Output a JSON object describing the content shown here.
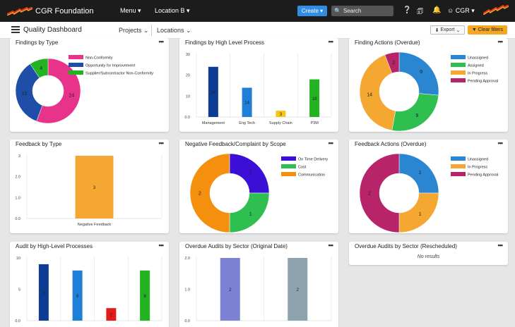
{
  "topbar": {
    "brand": "CGR Foundation",
    "menu": "Menu ▾",
    "location": "Location B ▾",
    "create": "Create ▾",
    "search_placeholder": "Search",
    "user": "CGR ▾"
  },
  "subbar": {
    "title": "Quality Dashboard",
    "projects": "Projects",
    "locations": "Locations",
    "export": "Export",
    "clear_filters": "Clear filters"
  },
  "cards": [
    {
      "title": "Findings by Type",
      "menu": "•••"
    },
    {
      "title": "Findings by High Level Process",
      "menu": "•••"
    },
    {
      "title": "Finding Actions (Overdue)",
      "menu": "•••"
    },
    {
      "title": "Feedback by Type",
      "menu": "•••"
    },
    {
      "title": "Negative Feedback/Complaint by Scope",
      "menu": "•••"
    },
    {
      "title": "Feedback Actions (Overdue)",
      "menu": "•••"
    },
    {
      "title": "Audit by High-Level Processes",
      "menu": "•••"
    },
    {
      "title": "Overdue Audits by Sector (Original Date)",
      "menu": "•••"
    },
    {
      "title": "Overdue Audits by Sector (Rescheduled)",
      "menu": "•••",
      "empty_text": "No results"
    }
  ],
  "chart_data": [
    {
      "type": "pie",
      "title": "Findings by Type",
      "labels": [
        "Non-Conformity",
        "Opportunity for Improvement",
        "Supplier/Subcontractor Non-Conformity"
      ],
      "values": [
        24,
        15,
        4
      ],
      "colors": [
        "#e8338b",
        "#1f4ea8",
        "#22b222"
      ],
      "legend": "right"
    },
    {
      "type": "bar",
      "title": "Findings by High Level Process",
      "categories": [
        "Management",
        "Eng Tech",
        "Supply Chain",
        "P3M"
      ],
      "values": [
        24,
        14,
        3,
        18
      ],
      "colors": [
        "#0d3c94",
        "#1f7fd6",
        "#f5c518",
        "#22b222"
      ],
      "ylim": [
        0,
        30
      ],
      "yticks": [
        "0.0",
        "10",
        "20",
        "30"
      ]
    },
    {
      "type": "pie",
      "title": "Finding Actions (Overdue)",
      "labels": [
        "Unassigned",
        "Assigned",
        "In Progress",
        "Pending Approval"
      ],
      "values": [
        9,
        9,
        14,
        2
      ],
      "colors": [
        "#2a86d1",
        "#2fbf50",
        "#f5a831",
        "#b8246a"
      ],
      "legend": "right"
    },
    {
      "type": "bar",
      "title": "Feedback by Type",
      "categories": [
        "Negative Feedback"
      ],
      "values": [
        3
      ],
      "colors": [
        "#f5a831"
      ],
      "ylim": [
        0,
        3
      ],
      "yticks": [
        "0.0",
        "1.0",
        "2.0",
        "3"
      ]
    },
    {
      "type": "pie",
      "title": "Negative Feedback/Complaint by Scope",
      "labels": [
        "On Time Delivery",
        "Cost",
        "Communication"
      ],
      "values": [
        1,
        1,
        2
      ],
      "colors": [
        "#3c0fd6",
        "#2fbf50",
        "#f5900f"
      ],
      "legend": "right"
    },
    {
      "type": "pie",
      "title": "Feedback Actions (Overdue)",
      "labels": [
        "Unassigned",
        "In Progress",
        "Pending Approval"
      ],
      "values": [
        1,
        1,
        2
      ],
      "colors": [
        "#2a86d1",
        "#f5a831",
        "#b8246a"
      ],
      "legend": "right"
    },
    {
      "type": "bar",
      "title": "Audit by High-Level Processes",
      "categories": [
        "",
        "",
        "",
        ""
      ],
      "values": [
        9,
        8,
        2,
        8
      ],
      "colors": [
        "#0d3c94",
        "#1f7fd6",
        "#e31b1b",
        "#22b222"
      ],
      "ylim": [
        0,
        10
      ],
      "yticks": [
        "0.0",
        "5",
        "10"
      ]
    },
    {
      "type": "bar",
      "title": "Overdue Audits by Sector (Original Date)",
      "categories": [
        "",
        ""
      ],
      "values": [
        2,
        2
      ],
      "colors": [
        "#7b82d4",
        "#8ea3b0"
      ],
      "ylim": [
        0,
        2
      ],
      "yticks": [
        "0.0",
        "1.0",
        "2.0"
      ]
    }
  ]
}
